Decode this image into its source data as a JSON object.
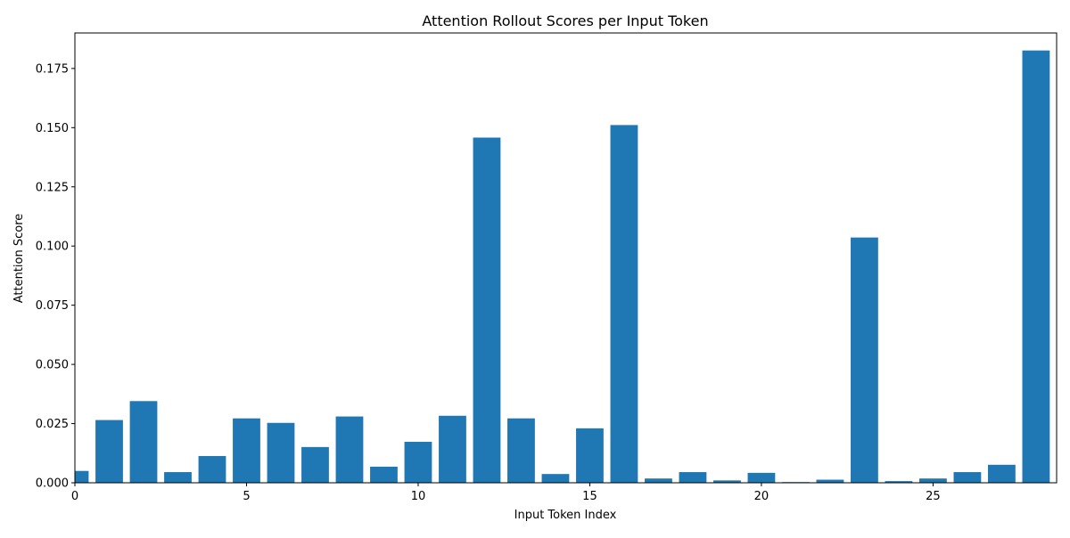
{
  "chart_data": {
    "type": "bar",
    "title": "Attention Rollout Scores per Input Token",
    "xlabel": "Input Token Index",
    "ylabel": "Attention Score",
    "x": [
      0,
      1,
      2,
      3,
      4,
      5,
      6,
      7,
      8,
      9,
      10,
      11,
      12,
      13,
      14,
      15,
      16,
      17,
      18,
      19,
      20,
      21,
      22,
      23,
      24,
      25,
      26,
      27,
      28
    ],
    "values": [
      0.005,
      0.0265,
      0.0345,
      0.0045,
      0.0113,
      0.0272,
      0.0253,
      0.0151,
      0.028,
      0.0068,
      0.0173,
      0.0283,
      0.1458,
      0.0272,
      0.0037,
      0.023,
      0.1511,
      0.0018,
      0.0045,
      0.001,
      0.0042,
      0.0003,
      0.0013,
      0.1036,
      0.0007,
      0.0018,
      0.0045,
      0.0076,
      0.1826
    ],
    "xlim": [
      0,
      28.6
    ],
    "ylim": [
      0,
      0.19
    ],
    "xticks": [
      0,
      5,
      10,
      15,
      20,
      25
    ],
    "xtick_labels": [
      "0",
      "5",
      "10",
      "15",
      "20",
      "25"
    ],
    "yticks": [
      0,
      0.025,
      0.05,
      0.075,
      0.1,
      0.125,
      0.15,
      0.175
    ],
    "ytick_labels": [
      "0.000",
      "0.025",
      "0.050",
      "0.075",
      "0.100",
      "0.125",
      "0.150",
      "0.175"
    ],
    "bar_color": "#1f77b4",
    "grid": false,
    "legend": "none"
  }
}
